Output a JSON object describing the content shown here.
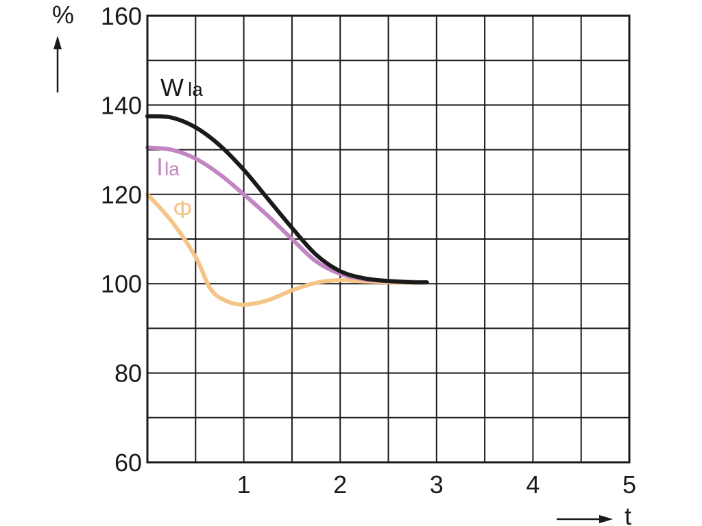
{
  "chart_data": {
    "type": "line",
    "xlabel": "t",
    "ylabel": "%",
    "xlim": [
      0,
      5
    ],
    "ylim": [
      60,
      160
    ],
    "x_ticks": [
      "1",
      "2",
      "3",
      "4",
      "5"
    ],
    "y_ticks": [
      "60",
      "80",
      "100",
      "120",
      "140",
      "160"
    ],
    "grid": true,
    "series": [
      {
        "name": "W",
        "name_sub": "la",
        "color": "#1a1a1a",
        "x": [
          0,
          0.25,
          0.5,
          0.75,
          1.0,
          1.25,
          1.5,
          1.75,
          2.0,
          2.25,
          2.5,
          2.75,
          2.9
        ],
        "y": [
          137.5,
          137.2,
          135.0,
          131.0,
          125.5,
          119.0,
          112.5,
          106.5,
          102.8,
          101.2,
          100.6,
          100.3,
          100.3
        ]
      },
      {
        "name": "I",
        "name_sub": "la",
        "color": "#c285c4",
        "x": [
          0,
          0.25,
          0.5,
          0.75,
          1.0,
          1.25,
          1.5,
          1.75,
          2.0,
          2.25,
          2.5,
          2.75,
          2.9
        ],
        "y": [
          130.5,
          130.0,
          128.0,
          124.5,
          120.0,
          115.2,
          110.0,
          105.0,
          102.2,
          101.0,
          100.6,
          100.4,
          100.3
        ]
      },
      {
        "name": "Φ",
        "name_sub": "",
        "color": "#f5c487",
        "x": [
          0,
          0.25,
          0.5,
          0.65,
          0.8,
          1.0,
          1.25,
          1.5,
          1.75,
          2.0,
          2.25,
          2.5,
          2.9
        ],
        "y": [
          120.0,
          114.0,
          106.0,
          99.0,
          96.3,
          95.3,
          96.3,
          98.5,
          100.2,
          100.8,
          100.5,
          100.3,
          100.3
        ]
      }
    ]
  }
}
